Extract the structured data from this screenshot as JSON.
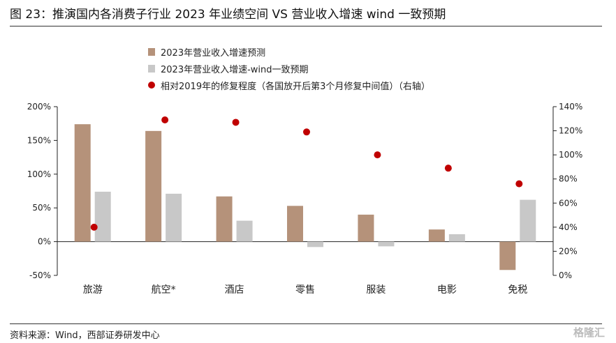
{
  "title": "图 23：推演国内各消费子行业 2023 年业绩空间 VS 营业收入增速 wind 一致预期",
  "source": "资料来源：Wind，西部证券研发中心",
  "watermark": "格隆汇",
  "colors": {
    "forecast": "#B5927A",
    "consensus": "#C8C8C8",
    "recovery": "#C00000"
  },
  "chart_data": {
    "type": "bar",
    "categories": [
      "旅游",
      "航空*",
      "酒店",
      "零售",
      "服装",
      "电影",
      "免税"
    ],
    "series": [
      {
        "name": "2023年营业收入增速预测",
        "type": "bar",
        "axis": "left",
        "values": [
          1.74,
          1.64,
          0.67,
          0.53,
          0.4,
          0.18,
          -0.42
        ]
      },
      {
        "name": "2023年营业收入增速-wind一致预期",
        "type": "bar",
        "axis": "left",
        "values": [
          0.74,
          0.71,
          0.31,
          -0.08,
          -0.07,
          0.11,
          0.62
        ]
      },
      {
        "name": "相对2019年的修复程度（各国放开后第3个月修复中间值）（右轴）",
        "type": "scatter",
        "axis": "right",
        "values": [
          0.4,
          1.29,
          1.27,
          1.19,
          1.0,
          0.89,
          0.76
        ]
      }
    ],
    "left_axis": {
      "ylim": [
        -0.5,
        2.0
      ],
      "ticks": [
        -0.5,
        0,
        0.5,
        1.0,
        1.5,
        2.0
      ],
      "tick_labels": [
        "-50%",
        "0%",
        "50%",
        "100%",
        "150%",
        "200%"
      ]
    },
    "right_axis": {
      "ylim": [
        0,
        1.4
      ],
      "ticks": [
        0,
        0.2,
        0.4,
        0.6,
        0.8,
        1.0,
        1.2,
        1.4
      ],
      "tick_labels": [
        "0%",
        "20%",
        "40%",
        "60%",
        "80%",
        "100%",
        "120%",
        "140%"
      ]
    },
    "legend_position": "top-center",
    "grid": false
  }
}
